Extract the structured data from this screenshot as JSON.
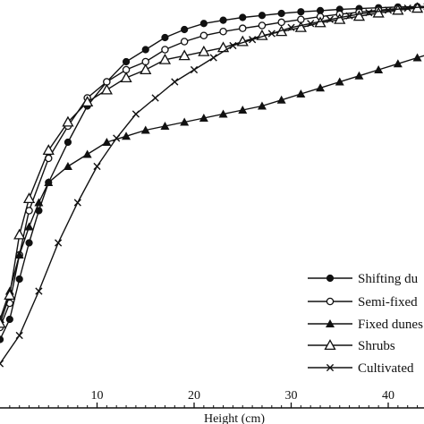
{
  "chart_data": {
    "type": "line",
    "xlabel": "Height (cm)",
    "ylabel": "",
    "xlim": [
      0,
      46
    ],
    "ylim": [
      0,
      1.0
    ],
    "x_ticks": [
      10,
      20,
      30,
      40
    ],
    "grid": false,
    "legend_placement": "bottom-right",
    "series": [
      {
        "name": "Shifting dunes",
        "marker": "filled-circle",
        "x": [
          0,
          1,
          2,
          3,
          4,
          5,
          7,
          9,
          11,
          13,
          15,
          17,
          19,
          21,
          23,
          25,
          27,
          29,
          31,
          33,
          35,
          37,
          39,
          41,
          43,
          45
        ],
        "y": [
          0.17,
          0.22,
          0.32,
          0.41,
          0.49,
          0.56,
          0.66,
          0.75,
          0.81,
          0.86,
          0.89,
          0.92,
          0.94,
          0.955,
          0.963,
          0.97,
          0.975,
          0.98,
          0.984,
          0.987,
          0.99,
          0.992,
          0.994,
          0.996,
          0.997,
          0.998
        ]
      },
      {
        "name": "Semi-fixed dunes",
        "marker": "open-circle",
        "x": [
          0,
          1,
          2,
          3,
          5,
          7,
          9,
          11,
          13,
          15,
          17,
          19,
          21,
          23,
          25,
          27,
          29,
          31,
          33,
          35,
          37,
          39,
          41,
          43,
          45
        ],
        "y": [
          0.2,
          0.26,
          0.38,
          0.49,
          0.62,
          0.7,
          0.77,
          0.81,
          0.84,
          0.86,
          0.89,
          0.91,
          0.925,
          0.935,
          0.943,
          0.95,
          0.958,
          0.965,
          0.972,
          0.978,
          0.983,
          0.988,
          0.992,
          0.995,
          0.997
        ]
      },
      {
        "name": "Fixed dunes",
        "marker": "filled-triangle",
        "x": [
          0,
          1,
          2,
          3,
          4,
          5,
          7,
          9,
          11,
          13,
          15,
          17,
          19,
          21,
          23,
          25,
          27,
          29,
          31,
          33,
          35,
          37,
          39,
          41,
          43,
          45
        ],
        "y": [
          0.22,
          0.29,
          0.38,
          0.45,
          0.51,
          0.56,
          0.6,
          0.63,
          0.66,
          0.675,
          0.69,
          0.7,
          0.71,
          0.72,
          0.73,
          0.74,
          0.75,
          0.765,
          0.78,
          0.795,
          0.81,
          0.825,
          0.84,
          0.855,
          0.87,
          0.885
        ]
      },
      {
        "name": "Shrubs",
        "marker": "open-triangle",
        "x": [
          0,
          1,
          2,
          3,
          5,
          7,
          9,
          11,
          13,
          15,
          17,
          19,
          21,
          23,
          25,
          27,
          29,
          31,
          33,
          35,
          37,
          39,
          41,
          43,
          45
        ],
        "y": [
          0.21,
          0.28,
          0.43,
          0.52,
          0.64,
          0.71,
          0.76,
          0.79,
          0.82,
          0.84,
          0.865,
          0.875,
          0.885,
          0.895,
          0.91,
          0.925,
          0.935,
          0.945,
          0.957,
          0.965,
          0.973,
          0.981,
          0.988,
          0.993,
          0.997
        ]
      },
      {
        "name": "Cultivated",
        "marker": "cross",
        "x": [
          0,
          2,
          4,
          6,
          8,
          10,
          12,
          14,
          16,
          18,
          20,
          22,
          24,
          26,
          28,
          30,
          32,
          34,
          36,
          38,
          40,
          42,
          44,
          46
        ],
        "y": [
          0.11,
          0.18,
          0.29,
          0.41,
          0.51,
          0.6,
          0.67,
          0.73,
          0.77,
          0.81,
          0.84,
          0.87,
          0.9,
          0.915,
          0.93,
          0.945,
          0.955,
          0.965,
          0.974,
          0.982,
          0.988,
          0.993,
          0.997,
          1.0
        ]
      }
    ]
  },
  "legend": {
    "items": [
      "Shifting du",
      "Semi-fixed",
      "Fixed dunes",
      "Shrubs",
      "Cultivated"
    ]
  }
}
